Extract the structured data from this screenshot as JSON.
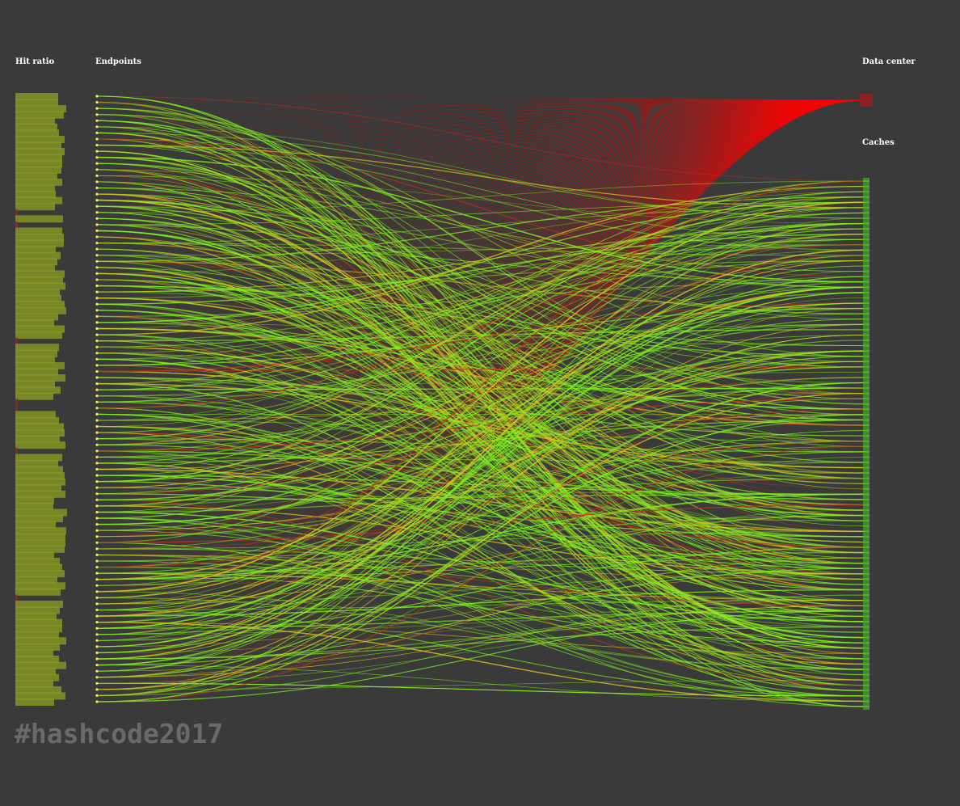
{
  "labels": {
    "hit_ratio": "Hit ratio",
    "endpoints": "Endpoints",
    "data_center": "Data center",
    "caches": "Caches"
  },
  "footer": {
    "hashtag": "#hashcode2017"
  },
  "colors": {
    "background": "#3a3a3a",
    "data_center": "#ff0000",
    "cache": "#3d8a2a",
    "hit_bar": "#8a9a20",
    "endpoint_dot": "#f0f060",
    "green_link": "#7ff020",
    "yellow_link": "#e0c020",
    "red_link": "#c03020"
  },
  "diagram": {
    "endpoint_count": 100,
    "cache_count": 100,
    "links_per_endpoint": 4,
    "hit_ratios_note": "",
    "miss_endpoints": [
      19,
      21,
      40,
      50,
      51,
      58,
      82
    ]
  }
}
